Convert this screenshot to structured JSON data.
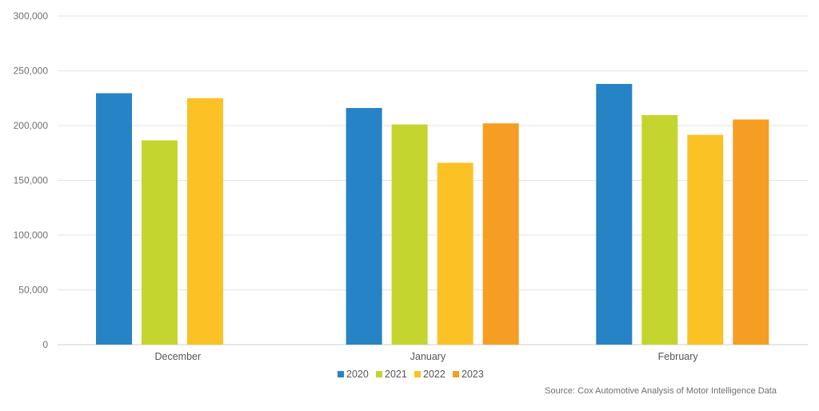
{
  "chart_data": {
    "type": "bar",
    "categories": [
      "December",
      "January",
      "February"
    ],
    "series": [
      {
        "name": "2020",
        "color": "#2683c6",
        "values": [
          229500,
          216000,
          238000
        ]
      },
      {
        "name": "2021",
        "color": "#c4d52f",
        "values": [
          186500,
          201000,
          209500
        ]
      },
      {
        "name": "2022",
        "color": "#fbc226",
        "values": [
          225000,
          166000,
          191500
        ]
      },
      {
        "name": "2023",
        "color": "#f59e23",
        "values": [
          null,
          202000,
          205500
        ]
      }
    ],
    "ylim": [
      0,
      300000
    ],
    "yticks": [
      0,
      50000,
      100000,
      150000,
      200000,
      250000,
      300000
    ],
    "ytick_labels": [
      "0",
      "50,000",
      "100,000",
      "150,000",
      "200,000",
      "250,000",
      "300,000"
    ],
    "grid": true,
    "legend_position": "bottom",
    "title": "",
    "xlabel": "",
    "ylabel": ""
  },
  "source_note": "Source: Cox Automotive Analysis of Motor Intelligence Data"
}
